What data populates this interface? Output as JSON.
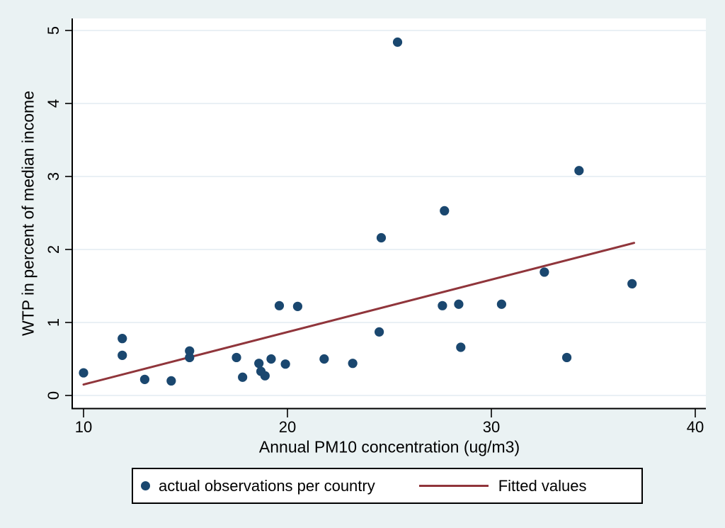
{
  "figure": {
    "colors": {
      "background": "#eaf2f3",
      "plot_background": "#ffffff",
      "grid": "#e2ecf2",
      "axis": "#000000",
      "marker": "#1a476f",
      "fit_line": "#90353b"
    }
  },
  "chart_data": {
    "type": "scatter",
    "title": "",
    "xlabel": "Annual PM10 concentration (ug/m3)",
    "ylabel": "WTP in percent of median income",
    "xlim": [
      9.4,
      40.5
    ],
    "ylim": [
      0,
      5.2
    ],
    "x_ticks": [
      10,
      20,
      30,
      40
    ],
    "y_ticks": [
      0,
      1,
      2,
      3,
      4,
      5
    ],
    "grid": "horizontal-only",
    "legend_position": "bottom-outside",
    "legend": [
      "actual observations per country",
      "Fitted values"
    ],
    "series": [
      {
        "name": "actual observations per country",
        "type": "scatter",
        "color": "#1a476f",
        "points": [
          [
            10.0,
            0.31
          ],
          [
            11.9,
            0.78
          ],
          [
            11.9,
            0.55
          ],
          [
            13.0,
            0.22
          ],
          [
            14.3,
            0.2
          ],
          [
            15.2,
            0.61
          ],
          [
            15.2,
            0.52
          ],
          [
            17.5,
            0.52
          ],
          [
            17.8,
            0.25
          ],
          [
            18.6,
            0.44
          ],
          [
            18.7,
            0.33
          ],
          [
            18.9,
            0.27
          ],
          [
            19.2,
            0.5
          ],
          [
            19.9,
            0.43
          ],
          [
            19.6,
            1.23
          ],
          [
            20.5,
            1.22
          ],
          [
            21.8,
            0.5
          ],
          [
            23.2,
            0.44
          ],
          [
            24.5,
            0.87
          ],
          [
            24.6,
            2.16
          ],
          [
            25.4,
            4.84
          ],
          [
            27.6,
            1.23
          ],
          [
            27.7,
            2.53
          ],
          [
            28.4,
            1.25
          ],
          [
            28.5,
            0.66
          ],
          [
            30.5,
            1.25
          ],
          [
            32.6,
            1.69
          ],
          [
            33.7,
            0.52
          ],
          [
            34.3,
            3.08
          ],
          [
            36.9,
            1.53
          ]
        ]
      },
      {
        "name": "Fitted values",
        "type": "line",
        "color": "#90353b",
        "points": [
          [
            10.0,
            0.15
          ],
          [
            37.0,
            2.09
          ]
        ]
      }
    ]
  }
}
